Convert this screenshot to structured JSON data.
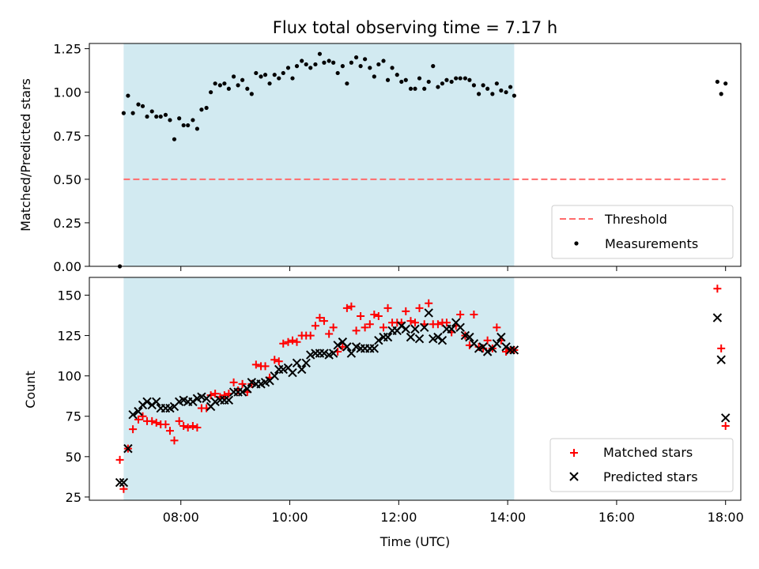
{
  "chart_data": [
    {
      "type": "scatter",
      "title": "Flux total observing time = 7.17 h",
      "xlabel": "",
      "ylabel": "Matched/Predicted stars",
      "xlim": [
        6.32,
        18.28
      ],
      "ylim": [
        0.0,
        1.28
      ],
      "ytick_labels": [
        "0.00",
        "0.25",
        "0.50",
        "0.75",
        "1.00",
        "1.25"
      ],
      "yticks": [
        0.0,
        0.25,
        0.5,
        0.75,
        1.0,
        1.25
      ],
      "xticks": [
        8,
        10,
        12,
        14,
        16,
        18
      ],
      "shaded_span": {
        "x0": 6.95,
        "x1": 14.12,
        "color": "#add8e6"
      },
      "threshold": {
        "name": "Threshold",
        "value": 0.5,
        "x0": 6.95,
        "x1": 18.0,
        "color": "#ff6b6b"
      },
      "legend": {
        "position": "lower-right",
        "entries": [
          "Threshold",
          "Measurements"
        ]
      },
      "series": [
        {
          "name": "Measurements",
          "color": "#000000",
          "x": [
            6.88,
            6.95,
            7.03,
            7.12,
            7.22,
            7.3,
            7.38,
            7.47,
            7.55,
            7.63,
            7.72,
            7.8,
            7.88,
            7.97,
            8.05,
            8.13,
            8.22,
            8.3,
            8.38,
            8.47,
            8.55,
            8.63,
            8.72,
            8.8,
            8.88,
            8.97,
            9.05,
            9.13,
            9.22,
            9.3,
            9.38,
            9.47,
            9.55,
            9.63,
            9.72,
            9.8,
            9.88,
            9.97,
            10.05,
            10.13,
            10.22,
            10.3,
            10.38,
            10.47,
            10.55,
            10.63,
            10.72,
            10.8,
            10.88,
            10.97,
            11.05,
            11.13,
            11.22,
            11.3,
            11.38,
            11.47,
            11.55,
            11.63,
            11.72,
            11.8,
            11.88,
            11.97,
            12.05,
            12.13,
            12.22,
            12.3,
            12.38,
            12.47,
            12.55,
            12.63,
            12.72,
            12.8,
            12.88,
            12.97,
            13.05,
            13.13,
            13.22,
            13.3,
            13.38,
            13.47,
            13.55,
            13.63,
            13.72,
            13.8,
            13.88,
            13.97,
            14.05,
            14.12,
            17.85,
            17.92,
            18.0
          ],
          "y": [
            0.0,
            0.88,
            0.98,
            0.88,
            0.93,
            0.92,
            0.86,
            0.89,
            0.86,
            0.86,
            0.87,
            0.84,
            0.73,
            0.85,
            0.81,
            0.81,
            0.84,
            0.79,
            0.9,
            0.91,
            1.0,
            1.05,
            1.04,
            1.05,
            1.02,
            1.09,
            1.04,
            1.07,
            1.02,
            0.99,
            1.11,
            1.09,
            1.1,
            1.05,
            1.1,
            1.08,
            1.11,
            1.14,
            1.08,
            1.15,
            1.18,
            1.16,
            1.14,
            1.16,
            1.22,
            1.17,
            1.18,
            1.17,
            1.11,
            1.15,
            1.05,
            1.17,
            1.2,
            1.15,
            1.19,
            1.14,
            1.09,
            1.16,
            1.18,
            1.07,
            1.14,
            1.1,
            1.06,
            1.07,
            1.02,
            1.02,
            1.08,
            1.02,
            1.06,
            1.15,
            1.03,
            1.05,
            1.07,
            1.06,
            1.08,
            1.08,
            1.08,
            1.07,
            1.04,
            0.99,
            1.04,
            1.02,
            0.99,
            1.05,
            1.01,
            1.0,
            1.03,
            0.98,
            1.06,
            0.99,
            1.05
          ]
        }
      ]
    },
    {
      "type": "scatter",
      "title": "",
      "xlabel": "Time (UTC)",
      "ylabel": "Count",
      "xlim": [
        6.32,
        18.28
      ],
      "ylim": [
        23,
        161
      ],
      "ytick_labels": [
        "25",
        "50",
        "75",
        "100",
        "125",
        "150"
      ],
      "yticks": [
        25,
        50,
        75,
        100,
        125,
        150
      ],
      "xticks": [
        8,
        10,
        12,
        14,
        16,
        18
      ],
      "xtick_labels": [
        "08:00",
        "10:00",
        "12:00",
        "14:00",
        "16:00",
        "18:00"
      ],
      "shaded_span": {
        "x0": 6.95,
        "x1": 14.12,
        "color": "#add8e6"
      },
      "legend": {
        "position": "lower-right",
        "entries": [
          "Matched stars",
          "Predicted stars"
        ]
      },
      "x": [
        6.88,
        6.95,
        7.03,
        7.12,
        7.22,
        7.3,
        7.38,
        7.47,
        7.55,
        7.63,
        7.72,
        7.8,
        7.88,
        7.97,
        8.05,
        8.13,
        8.22,
        8.3,
        8.38,
        8.47,
        8.55,
        8.63,
        8.72,
        8.8,
        8.88,
        8.97,
        9.05,
        9.13,
        9.22,
        9.3,
        9.38,
        9.47,
        9.55,
        9.63,
        9.72,
        9.8,
        9.88,
        9.97,
        10.05,
        10.13,
        10.22,
        10.3,
        10.38,
        10.47,
        10.55,
        10.63,
        10.72,
        10.8,
        10.88,
        10.97,
        11.05,
        11.13,
        11.22,
        11.3,
        11.38,
        11.47,
        11.55,
        11.63,
        11.72,
        11.8,
        11.88,
        11.97,
        12.05,
        12.13,
        12.22,
        12.3,
        12.38,
        12.47,
        12.55,
        12.63,
        12.72,
        12.8,
        12.88,
        12.97,
        13.05,
        13.13,
        13.22,
        13.3,
        13.38,
        13.47,
        13.55,
        13.63,
        13.72,
        13.8,
        13.88,
        13.97,
        14.05,
        14.12,
        17.85,
        17.92,
        18.0
      ],
      "series": [
        {
          "name": "Matched stars",
          "marker": "plus",
          "color": "#ff0000",
          "y": [
            48,
            30,
            55,
            67,
            73,
            75,
            72,
            72,
            71,
            70,
            70,
            66,
            60,
            72,
            69,
            68,
            69,
            68,
            80,
            80,
            88,
            89,
            87,
            88,
            89,
            96,
            91,
            95,
            90,
            95,
            107,
            106,
            106,
            99,
            110,
            109,
            120,
            121,
            122,
            121,
            125,
            125,
            125,
            131,
            136,
            134,
            126,
            130,
            115,
            118,
            142,
            143,
            128,
            137,
            130,
            132,
            138,
            137,
            130,
            142,
            133,
            133,
            133,
            140,
            134,
            133,
            142,
            132,
            145,
            132,
            132,
            133,
            133,
            127,
            131,
            138,
            125,
            119,
            138,
            118,
            117,
            122,
            117,
            130,
            122,
            115,
            116,
            116,
            154,
            117,
            69
          ]
        },
        {
          "name": "Predicted stars",
          "marker": "x",
          "color": "#000000",
          "y": [
            34,
            34,
            55,
            76,
            78,
            82,
            84,
            82,
            84,
            80,
            80,
            80,
            81,
            84,
            85,
            84,
            84,
            86,
            87,
            86,
            81,
            84,
            85,
            85,
            85,
            90,
            90,
            90,
            92,
            96,
            95,
            95,
            96,
            97,
            100,
            104,
            104,
            105,
            102,
            108,
            104,
            108,
            113,
            114,
            114,
            114,
            113,
            114,
            119,
            121,
            118,
            114,
            118,
            117,
            117,
            117,
            117,
            122,
            124,
            124,
            128,
            128,
            131,
            129,
            124,
            129,
            123,
            130,
            139,
            123,
            124,
            122,
            129,
            129,
            133,
            130,
            125,
            124,
            120,
            117,
            118,
            115,
            117,
            120,
            124,
            118,
            116,
            116,
            136,
            110,
            74
          ]
        }
      ]
    }
  ]
}
